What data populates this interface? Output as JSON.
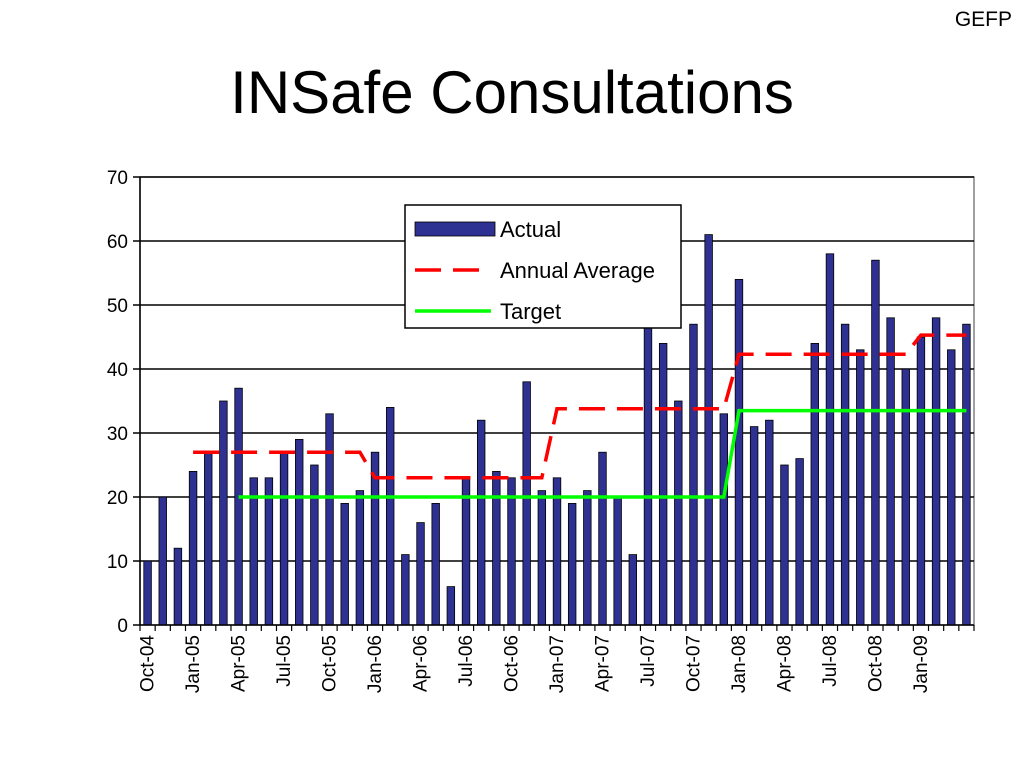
{
  "header": {
    "corner_label": "GEFP",
    "title": "INSafe Consultations"
  },
  "chart_data": {
    "type": "bar",
    "title": "INSafe Consultations",
    "xlabel": "",
    "ylabel": "",
    "ylim": [
      0,
      70
    ],
    "yticks": [
      0,
      10,
      20,
      30,
      40,
      50,
      60,
      70
    ],
    "grid": true,
    "legend_position": "top-center",
    "colors": {
      "actual": "#2e3192",
      "annual_average": "#ff0000",
      "target": "#00ff00"
    },
    "months": [
      "Oct-04",
      "Nov-04",
      "Dec-04",
      "Jan-05",
      "Feb-05",
      "Mar-05",
      "Apr-05",
      "May-05",
      "Jun-05",
      "Jul-05",
      "Aug-05",
      "Sep-05",
      "Oct-05",
      "Nov-05",
      "Dec-05",
      "Jan-06",
      "Feb-06",
      "Mar-06",
      "Apr-06",
      "May-06",
      "Jun-06",
      "Jul-06",
      "Aug-06",
      "Sep-06",
      "Oct-06",
      "Nov-06",
      "Dec-06",
      "Jan-07",
      "Feb-07",
      "Mar-07",
      "Apr-07",
      "May-07",
      "Jun-07",
      "Jul-07",
      "Aug-07",
      "Sep-07",
      "Oct-07",
      "Nov-07",
      "Dec-07",
      "Jan-08",
      "Feb-08",
      "Mar-08",
      "Apr-08",
      "May-08",
      "Jun-08",
      "Jul-08",
      "Aug-08",
      "Sep-08",
      "Oct-08",
      "Nov-08",
      "Dec-08",
      "Jan-09",
      "Feb-09",
      "Mar-09",
      "Apr-09"
    ],
    "tick_labels": [
      "Oct-04",
      "Jan-05",
      "Apr-05",
      "Jul-05",
      "Oct-05",
      "Jan-06",
      "Apr-06",
      "Jul-06",
      "Oct-06",
      "Jan-07",
      "Apr-07",
      "Jul-07",
      "Oct-07",
      "Jan-08",
      "Apr-08",
      "Jul-08",
      "Oct-08",
      "Jan-09"
    ],
    "series": [
      {
        "name": "Actual",
        "type": "bar",
        "values": [
          10,
          20,
          12,
          24,
          27,
          35,
          37,
          23,
          23,
          27,
          29,
          25,
          33,
          19,
          21,
          27,
          34,
          11,
          16,
          19,
          6,
          23,
          32,
          24,
          23,
          38,
          21,
          23,
          19,
          21,
          27,
          20,
          11,
          47,
          44,
          35,
          47,
          61,
          33,
          54,
          31,
          32,
          25,
          26,
          44,
          58,
          47,
          43,
          57,
          48,
          40,
          45,
          48,
          43,
          47
        ]
      },
      {
        "name": "Annual Average",
        "type": "line",
        "style": "dashed",
        "values": [
          null,
          null,
          null,
          27,
          27,
          27,
          27,
          27,
          27,
          27,
          27,
          27,
          27,
          27,
          27,
          23,
          23,
          23,
          23,
          23,
          23,
          23,
          23,
          23,
          23,
          23,
          23,
          33.8,
          33.8,
          33.8,
          33.8,
          33.8,
          33.8,
          33.8,
          33.8,
          33.8,
          33.8,
          33.8,
          33.8,
          42.3,
          42.3,
          42.3,
          42.3,
          42.3,
          42.3,
          42.3,
          42.3,
          42.3,
          42.3,
          42.3,
          42.3,
          45.3,
          45.3,
          45.3,
          45.3
        ]
      },
      {
        "name": "Target",
        "type": "line",
        "style": "solid",
        "values": [
          null,
          null,
          null,
          null,
          null,
          null,
          20,
          20,
          20,
          20,
          20,
          20,
          20,
          20,
          20,
          20,
          20,
          20,
          20,
          20,
          20,
          20,
          20,
          20,
          20,
          20,
          20,
          20,
          20,
          20,
          20,
          20,
          20,
          20,
          20,
          20,
          20,
          20,
          20,
          33.5,
          33.5,
          33.5,
          33.5,
          33.5,
          33.5,
          33.5,
          33.5,
          33.5,
          33.5,
          33.5,
          33.5,
          33.5,
          33.5,
          33.5,
          33.5
        ]
      }
    ]
  }
}
